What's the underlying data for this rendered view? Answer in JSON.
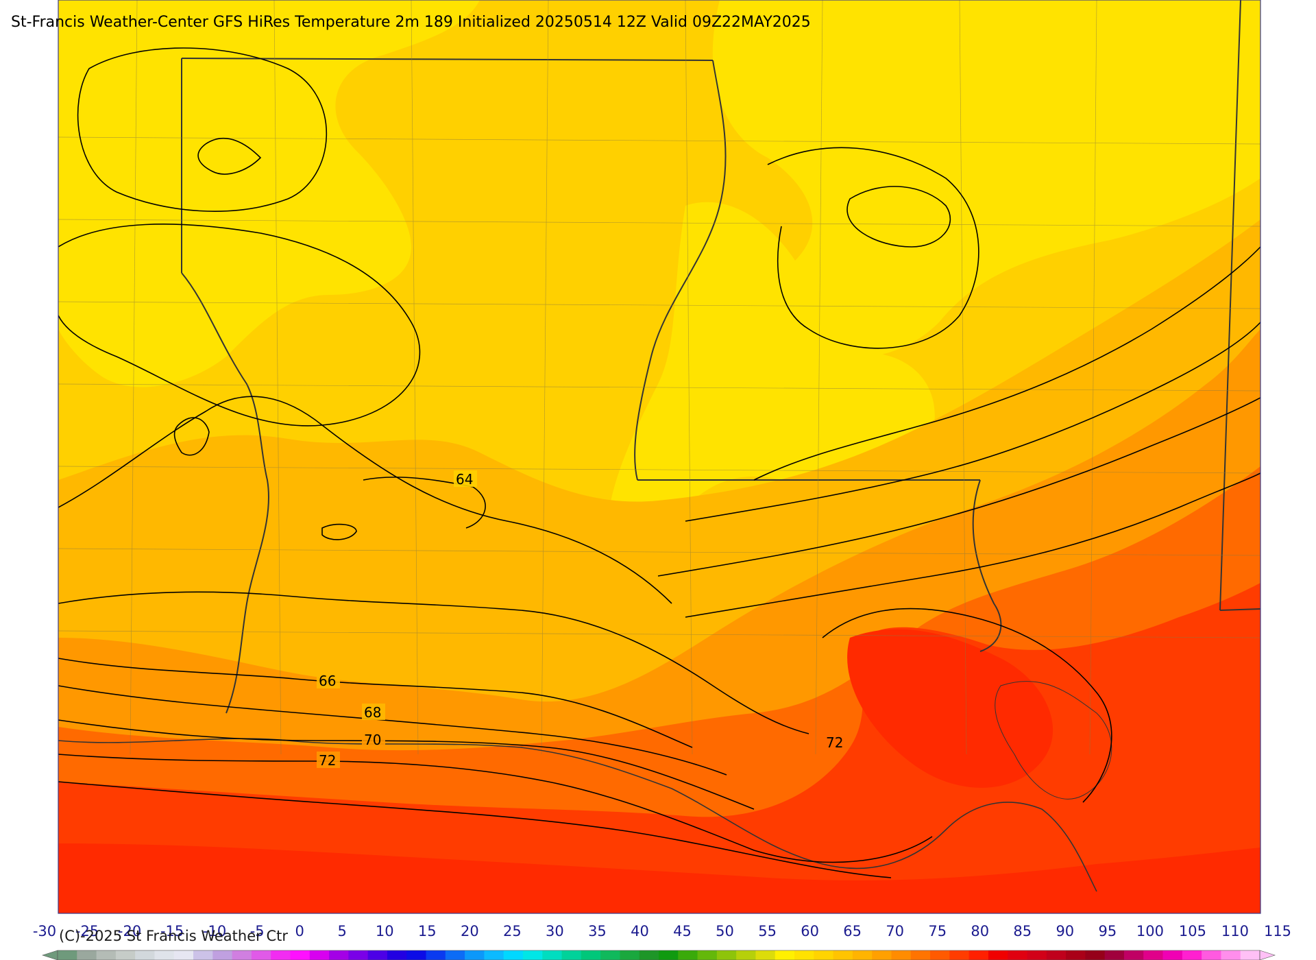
{
  "header": {
    "title": "St-Francis Weather-Center GFS HiRes Temperature 2m  189 Initialized 20250514 12Z Valid 09Z22MAY2025"
  },
  "footer": {
    "copyright": "(C)-2025 St Francis Weather Ctr"
  },
  "contour_labels": [
    "64",
    "66",
    "68",
    "70",
    "72",
    "72"
  ],
  "colorbar": {
    "ticks": [
      "-30",
      "-25",
      "-20",
      "-15",
      "-10",
      "-5",
      "0",
      "5",
      "10",
      "15",
      "20",
      "25",
      "30",
      "35",
      "40",
      "45",
      "50",
      "55",
      "60",
      "65",
      "70",
      "75",
      "80",
      "85",
      "90",
      "95",
      "100",
      "105",
      "110",
      "115"
    ],
    "colors": [
      "#6f9a7c",
      "#9aa89e",
      "#b4bcb6",
      "#c6ccc8",
      "#d2d8dc",
      "#dfe3ea",
      "#e6e6f2",
      "#ccc2e8",
      "#c0a0e0",
      "#d07fe0",
      "#e05ae8",
      "#f22cf2",
      "#ff10ff",
      "#d800f0",
      "#a400e6",
      "#7a00e8",
      "#4c00e6",
      "#2200e2",
      "#0c0ce6",
      "#0a3af0",
      "#0c6cf6",
      "#0c98fa",
      "#0cbaff",
      "#00d8ff",
      "#00e6e6",
      "#00ddc0",
      "#00d29a",
      "#00c77a",
      "#10b95c",
      "#1aa83e",
      "#1e9628",
      "#109a10",
      "#3aaa0a",
      "#64b80a",
      "#8ec40a",
      "#b6d00a",
      "#dcdc0a",
      "#fff000",
      "#ffe200",
      "#ffd400",
      "#ffc400",
      "#ffb400",
      "#ffa000",
      "#ff8c00",
      "#ff7400",
      "#ff5a00",
      "#ff3c00",
      "#ff2000",
      "#f00000",
      "#e00010",
      "#d20018",
      "#c0001c",
      "#aa0018",
      "#96001a",
      "#a0003c",
      "#c00064",
      "#e0008a",
      "#f000b4",
      "#ff20d0",
      "#ff5ae0",
      "#ff8eec",
      "#ffc0f6"
    ]
  },
  "palette": {
    "yellow": "#ffe300",
    "gold": "#ffd000",
    "amber": "#ffb800",
    "orange": "#ff9800",
    "deep_orange": "#ff6a00",
    "red_orange": "#ff3c00",
    "red": "#ff2a00"
  }
}
